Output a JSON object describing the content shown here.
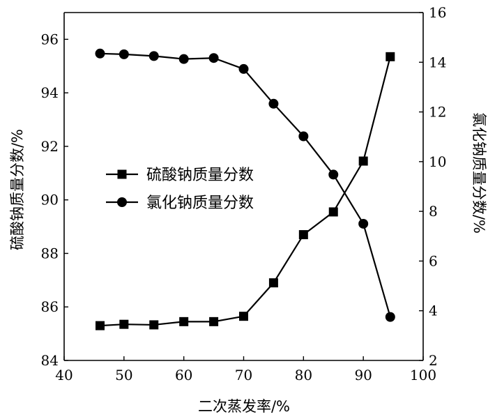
{
  "chart_data": {
    "type": "line",
    "xlabel": "二次蒸发率/%",
    "ylabel_left": "硫酸钠质量分数/%",
    "ylabel_right": "氯化钠质量分数/%",
    "xlim": [
      40,
      100
    ],
    "ylim_left": [
      84,
      97
    ],
    "ylim_right": [
      2,
      16
    ],
    "x_ticks": [
      40,
      50,
      60,
      70,
      80,
      90,
      100
    ],
    "y_left_ticks": [
      84,
      86,
      88,
      90,
      92,
      94,
      96
    ],
    "y_right_ticks": [
      2,
      4,
      6,
      8,
      10,
      12,
      14,
      16
    ],
    "grid": false,
    "legend_position": "center-left",
    "series": [
      {
        "name": "硫酸钠质量分数",
        "axis": "left",
        "marker": "square",
        "x": [
          46,
          50,
          55,
          60,
          65,
          70,
          75,
          80,
          85,
          90,
          94.5
        ],
        "y": [
          85.3,
          85.35,
          85.33,
          85.45,
          85.45,
          85.65,
          86.9,
          88.7,
          89.55,
          91.45,
          95.35
        ]
      },
      {
        "name": "氯化钠质量分数",
        "axis": "right",
        "marker": "circle",
        "x": [
          46,
          50,
          55,
          60,
          65,
          70,
          75,
          80,
          85,
          90,
          94.5
        ],
        "y": [
          14.35,
          14.32,
          14.25,
          14.13,
          14.17,
          13.73,
          12.33,
          11.02,
          9.48,
          7.5,
          3.75
        ]
      }
    ]
  }
}
